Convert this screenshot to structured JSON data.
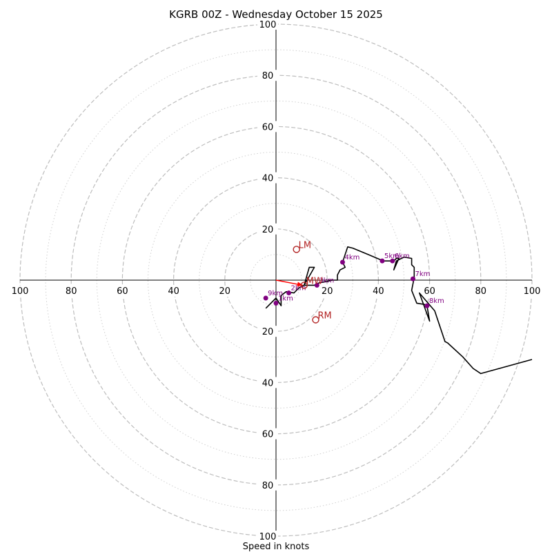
{
  "chart_data": {
    "type": "hodograph",
    "title": "KGRB 00Z - Wednesday October 15 2025",
    "xlabel": "Speed in knots",
    "units": "knots",
    "xlim": [
      -100,
      100
    ],
    "ylim": [
      -100,
      100
    ],
    "ring_major": [
      20,
      40,
      60,
      80,
      100
    ],
    "ring_minor": [
      10,
      30,
      50,
      70,
      90
    ],
    "x_tick_labels": [
      "100",
      "80",
      "60",
      "40",
      "20",
      "20",
      "40",
      "60",
      "80",
      "100"
    ],
    "y_tick_labels": [
      "100",
      "80",
      "60",
      "40",
      "20",
      "20",
      "40",
      "60",
      "80",
      "100"
    ],
    "hodograph_trace": [
      [
        -4,
        -11
      ],
      [
        0,
        -7
      ],
      [
        2,
        -10
      ],
      [
        2,
        -6
      ],
      [
        4,
        -4.5
      ],
      [
        7,
        -5
      ],
      [
        9,
        -3
      ],
      [
        11,
        -2
      ],
      [
        13,
        5
      ],
      [
        15,
        5
      ],
      [
        11,
        -2
      ],
      [
        15,
        -2
      ],
      [
        17,
        -1
      ],
      [
        20,
        -0.5
      ],
      [
        22,
        0
      ],
      [
        24,
        0
      ],
      [
        24,
        2
      ],
      [
        25,
        4
      ],
      [
        27,
        5
      ],
      [
        26,
        7
      ],
      [
        27,
        10
      ],
      [
        28,
        13
      ],
      [
        30,
        12.5
      ],
      [
        36,
        10
      ],
      [
        42,
        7.5
      ],
      [
        46,
        7.5
      ],
      [
        47,
        8.5
      ],
      [
        48,
        8.5
      ],
      [
        46,
        4
      ],
      [
        47,
        7.5
      ],
      [
        50,
        9
      ],
      [
        53,
        8.5
      ],
      [
        53,
        6
      ],
      [
        54,
        5
      ],
      [
        54,
        1
      ],
      [
        53,
        -4
      ],
      [
        55,
        -9
      ],
      [
        58,
        -9.5
      ],
      [
        59,
        -10
      ],
      [
        60,
        -16
      ],
      [
        56,
        -5
      ],
      [
        62,
        -12
      ],
      [
        66,
        -24
      ],
      [
        67,
        -24.5
      ],
      [
        73,
        -30
      ],
      [
        77,
        -34.5
      ],
      [
        80,
        -36.5
      ],
      [
        100,
        -31
      ]
    ],
    "km_markers": [
      {
        "label": "1km",
        "u": 0,
        "v": -9
      },
      {
        "label": "2km",
        "u": 5,
        "v": -5
      },
      {
        "label": "3km",
        "u": 16,
        "v": -2
      },
      {
        "label": "4km",
        "u": 26,
        "v": 7
      },
      {
        "label": "5km",
        "u": 41.5,
        "v": 7.5
      },
      {
        "label": "6km",
        "u": 45.5,
        "v": 7.5
      },
      {
        "label": "7km",
        "u": 53.5,
        "v": 0.5
      },
      {
        "label": "8km",
        "u": 59,
        "v": -10
      },
      {
        "label": "9km",
        "u": -4,
        "v": -7
      }
    ],
    "storm_motion": [
      {
        "label": "LM",
        "u": 8,
        "v": 12
      },
      {
        "label": "RM",
        "u": 15.5,
        "v": -15.5
      },
      {
        "label": "MW",
        "u": 11,
        "v": -2
      }
    ],
    "mean_wind_vector": {
      "u": 10.5,
      "v": -2
    },
    "colors": {
      "trace": "#000000",
      "km_marker": "#800080",
      "storm_motion": "#b22222",
      "vector": "#ff0000",
      "ring_major": "#bdbdbd",
      "ring_minor": "#cfcfcf"
    }
  }
}
